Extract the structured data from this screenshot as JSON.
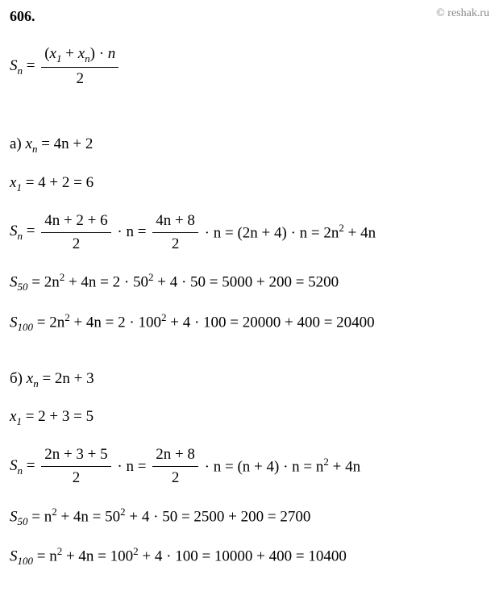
{
  "header": {
    "problem_number": "606.",
    "copyright": "© reshak.ru"
  },
  "formula_main": {
    "lhs_S": "S",
    "lhs_sub": "n",
    "eq": " = ",
    "num_open": "(",
    "num_x": "x",
    "num_sub1": "1",
    "num_plus": " + ",
    "num_x2": "x",
    "num_sub_n": "n",
    "num_close": ") · ",
    "num_n": "n",
    "den": "2"
  },
  "part_a": {
    "label": "а)   ",
    "xn_x": "x",
    "xn_sub": "n",
    "xn_rhs": " = 4n + 2",
    "x1_x": "x",
    "x1_sub": "1",
    "x1_rhs": " = 4 + 2 = 6",
    "sn_S": "S",
    "sn_sub": "n",
    "sn_eq": " = ",
    "sn_frac1_num": "4n + 2 + 6",
    "sn_frac1_den": "2",
    "sn_mid1": " · n = ",
    "sn_frac2_num": "4n + 8",
    "sn_frac2_den": "2",
    "sn_mid2": " · n = (2n + 4) · n = 2n",
    "sn_sup2": "2",
    "sn_end": " + 4n",
    "s50_S": "S",
    "s50_sub": "50",
    "s50_p1": " = 2n",
    "s50_sup": "2",
    "s50_p2": " + 4n = 2 · 50",
    "s50_sup2": "2",
    "s50_p3": " + 4 · 50 = 5000 + 200 = 5200",
    "s100_S": "S",
    "s100_sub": "100",
    "s100_p1": " = 2n",
    "s100_sup": "2",
    "s100_p2": " + 4n = 2 · 100",
    "s100_sup2": "2",
    "s100_p3": " + 4 · 100 = 20000 + 400 = 20400"
  },
  "part_b": {
    "label": "б)   ",
    "xn_x": "x",
    "xn_sub": "n",
    "xn_rhs": " = 2n + 3",
    "x1_x": "x",
    "x1_sub": "1",
    "x1_rhs": " = 2 + 3 = 5",
    "sn_S": "S",
    "sn_sub": "n",
    "sn_eq": " = ",
    "sn_frac1_num": "2n + 3 + 5",
    "sn_frac1_den": "2",
    "sn_mid1": " · n = ",
    "sn_frac2_num": "2n + 8",
    "sn_frac2_den": "2",
    "sn_mid2": " · n = (n + 4) · n = n",
    "sn_sup2": "2",
    "sn_end": " + 4n",
    "s50_S": "S",
    "s50_sub": "50",
    "s50_p1": " = n",
    "s50_sup": "2",
    "s50_p2": " + 4n = 50",
    "s50_sup2": "2",
    "s50_p3": " + 4 · 50 = 2500 + 200 = 2700",
    "s100_S": "S",
    "s100_sub": "100",
    "s100_p1": " = n",
    "s100_sup": "2",
    "s100_p2": " + 4n = 100",
    "s100_sup2": "2",
    "s100_p3": " + 4 · 100 = 10000 + 400 = 10400"
  }
}
